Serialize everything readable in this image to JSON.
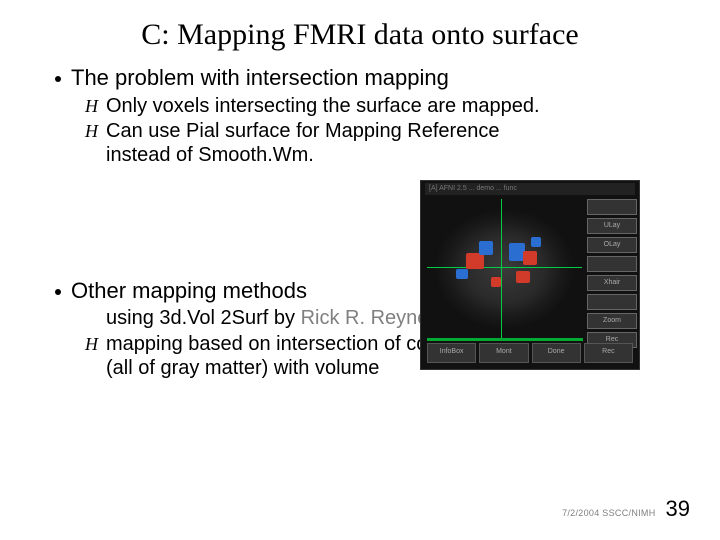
{
  "title": "C: Mapping FMRI data onto surface",
  "bullets": [
    {
      "text": "The problem with intersection mapping",
      "subs": [
        {
          "text": "Only voxels intersecting the surface are mapped."
        },
        {
          "text": "Can use Pial surface for Mapping Reference instead of Smooth.Wm."
        }
      ]
    },
    {
      "text": "Other mapping methods",
      "subs": [
        {
          "prefix": "using 3d.Vol 2Surf by ",
          "gray": "Rick R. Reynolds",
          "no_marker": true
        },
        {
          "text": "mapping based on intersection of cortical sheet (all of gray matter) with volume"
        }
      ]
    }
  ],
  "image": {
    "title_strip": "[A] AFNI 2.5 ... demo ... func",
    "ctl_labels": [
      "",
      "ULay",
      "OLay",
      "",
      "Xhair",
      "",
      "Zoom",
      "Rec"
    ],
    "info_labels": [
      "InfoBox",
      "Mont",
      "Done",
      "Rec"
    ],
    "blobs": [
      {
        "l": 45,
        "t": 72,
        "w": 18,
        "h": 16,
        "c": "#d23a2a"
      },
      {
        "l": 58,
        "t": 60,
        "w": 14,
        "h": 14,
        "c": "#2a6ed2"
      },
      {
        "l": 88,
        "t": 62,
        "w": 16,
        "h": 18,
        "c": "#2a6ed2"
      },
      {
        "l": 102,
        "t": 70,
        "w": 14,
        "h": 14,
        "c": "#d23a2a"
      },
      {
        "l": 95,
        "t": 90,
        "w": 14,
        "h": 12,
        "c": "#d23a2a"
      },
      {
        "l": 110,
        "t": 56,
        "w": 10,
        "h": 10,
        "c": "#2a6ed2"
      },
      {
        "l": 35,
        "t": 88,
        "w": 12,
        "h": 10,
        "c": "#2a6ed2"
      },
      {
        "l": 70,
        "t": 96,
        "w": 10,
        "h": 10,
        "c": "#d23a2a"
      }
    ],
    "colors": {
      "panel_bg": "#111111",
      "crosshair": "#00cc44",
      "green_bar": "#00aa33"
    }
  },
  "footer": {
    "date_org": "7/2/2004 SSCC/NIMH",
    "page": "39"
  }
}
